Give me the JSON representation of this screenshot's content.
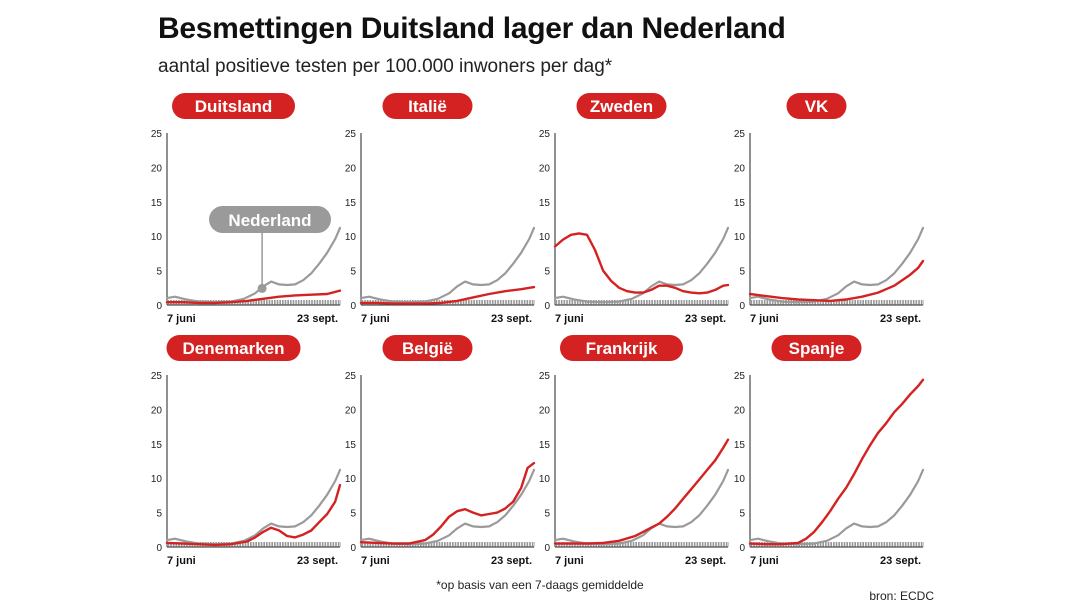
{
  "title": "Besmettingen Duitsland lager dan Nederland",
  "subtitle": "aantal positieve testen per 100.000 inwoners per dag*",
  "footnote": "*op basis van een 7-daags gemiddelde",
  "source": "bron: ECDC",
  "colors": {
    "country": "#d42222",
    "reference": "#9a9a9a",
    "badge": "#d42222",
    "badge_text": "#ffffff",
    "callout": "#9a9a9a"
  },
  "reference_name": "Nederland",
  "chart_data": [
    {
      "type": "line",
      "title": "Duitsland",
      "ylim": [
        0,
        25
      ],
      "yticks": [
        0,
        5,
        10,
        15,
        20,
        25
      ],
      "x_tick_labels": [
        "7 juni",
        "23 sept."
      ],
      "annotation": "Nederland",
      "series": [
        {
          "name": "Duitsland",
          "color": "#d42222",
          "x": [
            0,
            10,
            20,
            30,
            40,
            50,
            60,
            70,
            80,
            90,
            100,
            108
          ],
          "values": [
            0.4,
            0.4,
            0.3,
            0.3,
            0.4,
            0.6,
            0.9,
            1.2,
            1.4,
            1.5,
            1.6,
            2.1
          ]
        },
        {
          "name": "Nederland",
          "color": "#9a9a9a",
          "x": [
            0,
            5,
            12,
            20,
            30,
            40,
            48,
            55,
            60,
            65,
            70,
            75,
            80,
            85,
            90,
            95,
            100,
            105,
            108
          ],
          "values": [
            1.0,
            1.2,
            0.8,
            0.5,
            0.4,
            0.5,
            0.9,
            1.7,
            2.7,
            3.4,
            3.0,
            2.9,
            3.0,
            3.6,
            4.6,
            6.0,
            7.6,
            9.6,
            11.2
          ]
        }
      ]
    },
    {
      "type": "line",
      "title": "Italië",
      "ylim": [
        0,
        25
      ],
      "yticks": [
        0,
        5,
        10,
        15,
        20,
        25
      ],
      "x_tick_labels": [
        "7 juni",
        "23 sept."
      ],
      "series": [
        {
          "name": "Italië",
          "color": "#d42222",
          "x": [
            0,
            10,
            20,
            30,
            40,
            50,
            60,
            70,
            80,
            90,
            100,
            108
          ],
          "values": [
            0.3,
            0.3,
            0.2,
            0.2,
            0.2,
            0.3,
            0.6,
            1.1,
            1.6,
            2.0,
            2.3,
            2.6
          ]
        },
        {
          "name": "Nederland",
          "color": "#9a9a9a",
          "x": [
            0,
            5,
            12,
            20,
            30,
            40,
            48,
            55,
            60,
            65,
            70,
            75,
            80,
            85,
            90,
            95,
            100,
            105,
            108
          ],
          "values": [
            1.0,
            1.2,
            0.8,
            0.5,
            0.4,
            0.5,
            0.9,
            1.7,
            2.7,
            3.4,
            3.0,
            2.9,
            3.0,
            3.6,
            4.6,
            6.0,
            7.6,
            9.6,
            11.2
          ]
        }
      ]
    },
    {
      "type": "line",
      "title": "Zweden",
      "ylim": [
        0,
        25
      ],
      "yticks": [
        0,
        5,
        10,
        15,
        20,
        25
      ],
      "x_tick_labels": [
        "7 juni",
        "23 sept."
      ],
      "series": [
        {
          "name": "Zweden",
          "color": "#d42222",
          "x": [
            0,
            5,
            10,
            15,
            20,
            25,
            30,
            35,
            40,
            45,
            50,
            55,
            60,
            65,
            70,
            75,
            80,
            85,
            90,
            95,
            100,
            105,
            108
          ],
          "values": [
            8.5,
            9.5,
            10.2,
            10.4,
            10.2,
            8.0,
            5.0,
            3.5,
            2.5,
            2.0,
            1.8,
            1.8,
            2.2,
            2.8,
            2.8,
            2.5,
            2.0,
            1.8,
            1.7,
            1.8,
            2.2,
            2.8,
            2.9
          ]
        },
        {
          "name": "Nederland",
          "color": "#9a9a9a",
          "x": [
            0,
            5,
            12,
            20,
            30,
            40,
            48,
            55,
            60,
            65,
            70,
            75,
            80,
            85,
            90,
            95,
            100,
            105,
            108
          ],
          "values": [
            1.0,
            1.2,
            0.8,
            0.5,
            0.4,
            0.5,
            0.9,
            1.7,
            2.7,
            3.4,
            3.0,
            2.9,
            3.0,
            3.6,
            4.6,
            6.0,
            7.6,
            9.6,
            11.2
          ]
        }
      ]
    },
    {
      "type": "line",
      "title": "VK",
      "ylim": [
        0,
        25
      ],
      "yticks": [
        0,
        5,
        10,
        15,
        20,
        25
      ],
      "x_tick_labels": [
        "7 juni",
        "23 sept."
      ],
      "series": [
        {
          "name": "VK",
          "color": "#d42222",
          "x": [
            0,
            10,
            20,
            30,
            40,
            50,
            60,
            70,
            80,
            90,
            95,
            100,
            105,
            108
          ],
          "values": [
            1.6,
            1.3,
            1.0,
            0.8,
            0.7,
            0.6,
            0.8,
            1.2,
            1.8,
            2.8,
            3.6,
            4.4,
            5.4,
            6.4
          ]
        },
        {
          "name": "Nederland",
          "color": "#9a9a9a",
          "x": [
            0,
            5,
            12,
            20,
            30,
            40,
            48,
            55,
            60,
            65,
            70,
            75,
            80,
            85,
            90,
            95,
            100,
            105,
            108
          ],
          "values": [
            1.0,
            1.2,
            0.8,
            0.5,
            0.4,
            0.5,
            0.9,
            1.7,
            2.7,
            3.4,
            3.0,
            2.9,
            3.0,
            3.6,
            4.6,
            6.0,
            7.6,
            9.6,
            11.2
          ]
        }
      ]
    },
    {
      "type": "line",
      "title": "Denemarken",
      "ylim": [
        0,
        25
      ],
      "yticks": [
        0,
        5,
        10,
        15,
        20,
        25
      ],
      "x_tick_labels": [
        "7 juni",
        "23 sept."
      ],
      "series": [
        {
          "name": "Denemarken",
          "color": "#d42222",
          "x": [
            0,
            10,
            20,
            30,
            40,
            50,
            55,
            60,
            65,
            70,
            75,
            80,
            85,
            90,
            95,
            100,
            105,
            108
          ],
          "values": [
            0.6,
            0.5,
            0.4,
            0.3,
            0.4,
            0.8,
            1.4,
            2.2,
            2.8,
            2.4,
            1.6,
            1.4,
            1.8,
            2.4,
            3.6,
            4.8,
            6.6,
            9.0
          ]
        },
        {
          "name": "Nederland",
          "color": "#9a9a9a",
          "x": [
            0,
            5,
            12,
            20,
            30,
            40,
            48,
            55,
            60,
            65,
            70,
            75,
            80,
            85,
            90,
            95,
            100,
            105,
            108
          ],
          "values": [
            1.0,
            1.2,
            0.8,
            0.5,
            0.4,
            0.5,
            0.9,
            1.7,
            2.7,
            3.4,
            3.0,
            2.9,
            3.0,
            3.6,
            4.6,
            6.0,
            7.6,
            9.6,
            11.2
          ]
        }
      ]
    },
    {
      "type": "line",
      "title": "België",
      "ylim": [
        0,
        25
      ],
      "yticks": [
        0,
        5,
        10,
        15,
        20,
        25
      ],
      "x_tick_labels": [
        "7 juni",
        "23 sept."
      ],
      "series": [
        {
          "name": "België",
          "color": "#d42222",
          "x": [
            0,
            10,
            20,
            30,
            40,
            45,
            50,
            55,
            60,
            65,
            70,
            75,
            80,
            85,
            90,
            95,
            100,
            104,
            108
          ],
          "values": [
            0.7,
            0.6,
            0.5,
            0.5,
            1.0,
            1.8,
            3.0,
            4.4,
            5.2,
            5.5,
            5.0,
            4.6,
            4.8,
            5.0,
            5.6,
            6.6,
            8.6,
            11.5,
            12.2
          ]
        },
        {
          "name": "Nederland",
          "color": "#9a9a9a",
          "x": [
            0,
            5,
            12,
            20,
            30,
            40,
            48,
            55,
            60,
            65,
            70,
            75,
            80,
            85,
            90,
            95,
            100,
            105,
            108
          ],
          "values": [
            1.0,
            1.2,
            0.8,
            0.5,
            0.4,
            0.5,
            0.9,
            1.7,
            2.7,
            3.4,
            3.0,
            2.9,
            3.0,
            3.6,
            4.6,
            6.0,
            7.6,
            9.6,
            11.2
          ]
        }
      ]
    },
    {
      "type": "line",
      "title": "Frankrijk",
      "ylim": [
        0,
        25
      ],
      "yticks": [
        0,
        5,
        10,
        15,
        20,
        25
      ],
      "x_tick_labels": [
        "7 juni",
        "23 sept."
      ],
      "series": [
        {
          "name": "Frankrijk",
          "color": "#d42222",
          "x": [
            0,
            10,
            20,
            30,
            40,
            50,
            55,
            60,
            65,
            70,
            75,
            80,
            85,
            90,
            95,
            100,
            105,
            108
          ],
          "values": [
            0.5,
            0.5,
            0.5,
            0.6,
            0.9,
            1.6,
            2.2,
            2.8,
            3.4,
            4.4,
            5.6,
            7.0,
            8.4,
            9.8,
            11.2,
            12.6,
            14.4,
            15.6
          ]
        },
        {
          "name": "Nederland",
          "color": "#9a9a9a",
          "x": [
            0,
            5,
            12,
            20,
            30,
            40,
            48,
            55,
            60,
            65,
            70,
            75,
            80,
            85,
            90,
            95,
            100,
            105,
            108
          ],
          "values": [
            1.0,
            1.2,
            0.8,
            0.5,
            0.4,
            0.5,
            0.9,
            1.7,
            2.7,
            3.4,
            3.0,
            2.9,
            3.0,
            3.6,
            4.6,
            6.0,
            7.6,
            9.6,
            11.2
          ]
        }
      ]
    },
    {
      "type": "line",
      "title": "Spanje",
      "ylim": [
        0,
        25
      ],
      "yticks": [
        0,
        5,
        10,
        15,
        20,
        25
      ],
      "x_tick_labels": [
        "7 juni",
        "23 sept."
      ],
      "series": [
        {
          "name": "Spanje",
          "color": "#d42222",
          "x": [
            0,
            10,
            20,
            30,
            35,
            40,
            45,
            50,
            55,
            60,
            65,
            70,
            75,
            80,
            85,
            90,
            95,
            100,
            105,
            108
          ],
          "values": [
            0.5,
            0.4,
            0.4,
            0.6,
            1.2,
            2.2,
            3.6,
            5.2,
            7.0,
            8.6,
            10.6,
            12.8,
            14.8,
            16.6,
            18.0,
            19.6,
            20.8,
            22.2,
            23.4,
            24.3
          ]
        },
        {
          "name": "Nederland",
          "color": "#9a9a9a",
          "x": [
            0,
            5,
            12,
            20,
            30,
            40,
            48,
            55,
            60,
            65,
            70,
            75,
            80,
            85,
            90,
            95,
            100,
            105,
            108
          ],
          "values": [
            1.0,
            1.2,
            0.8,
            0.5,
            0.4,
            0.5,
            0.9,
            1.7,
            2.7,
            3.4,
            3.0,
            2.9,
            3.0,
            3.6,
            4.6,
            6.0,
            7.6,
            9.6,
            11.2
          ]
        }
      ]
    }
  ]
}
